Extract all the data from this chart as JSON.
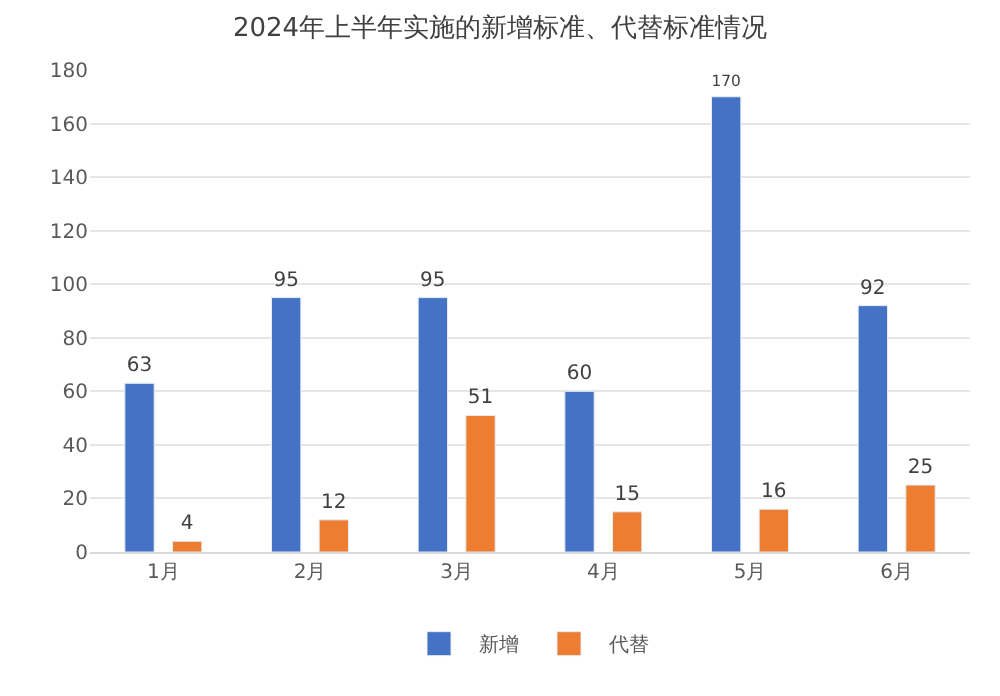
{
  "chart_data": {
    "type": "bar",
    "title": "2024年上半年实施的新增标准、代替标准情况",
    "categories": [
      "1月",
      "2月",
      "3月",
      "4月",
      "5月",
      "6月"
    ],
    "series": [
      {
        "name": "新增",
        "color": "#4472c4",
        "values": [
          63,
          95,
          95,
          60,
          170,
          92
        ]
      },
      {
        "name": "代替",
        "color": "#ed7d31",
        "values": [
          4,
          12,
          51,
          15,
          16,
          25
        ]
      }
    ],
    "ylim": [
      0,
      180
    ],
    "yticks": [
      0,
      20,
      40,
      60,
      80,
      100,
      120,
      140,
      160,
      180
    ],
    "grid": "y",
    "legend": "bottom",
    "data_labels": true
  }
}
